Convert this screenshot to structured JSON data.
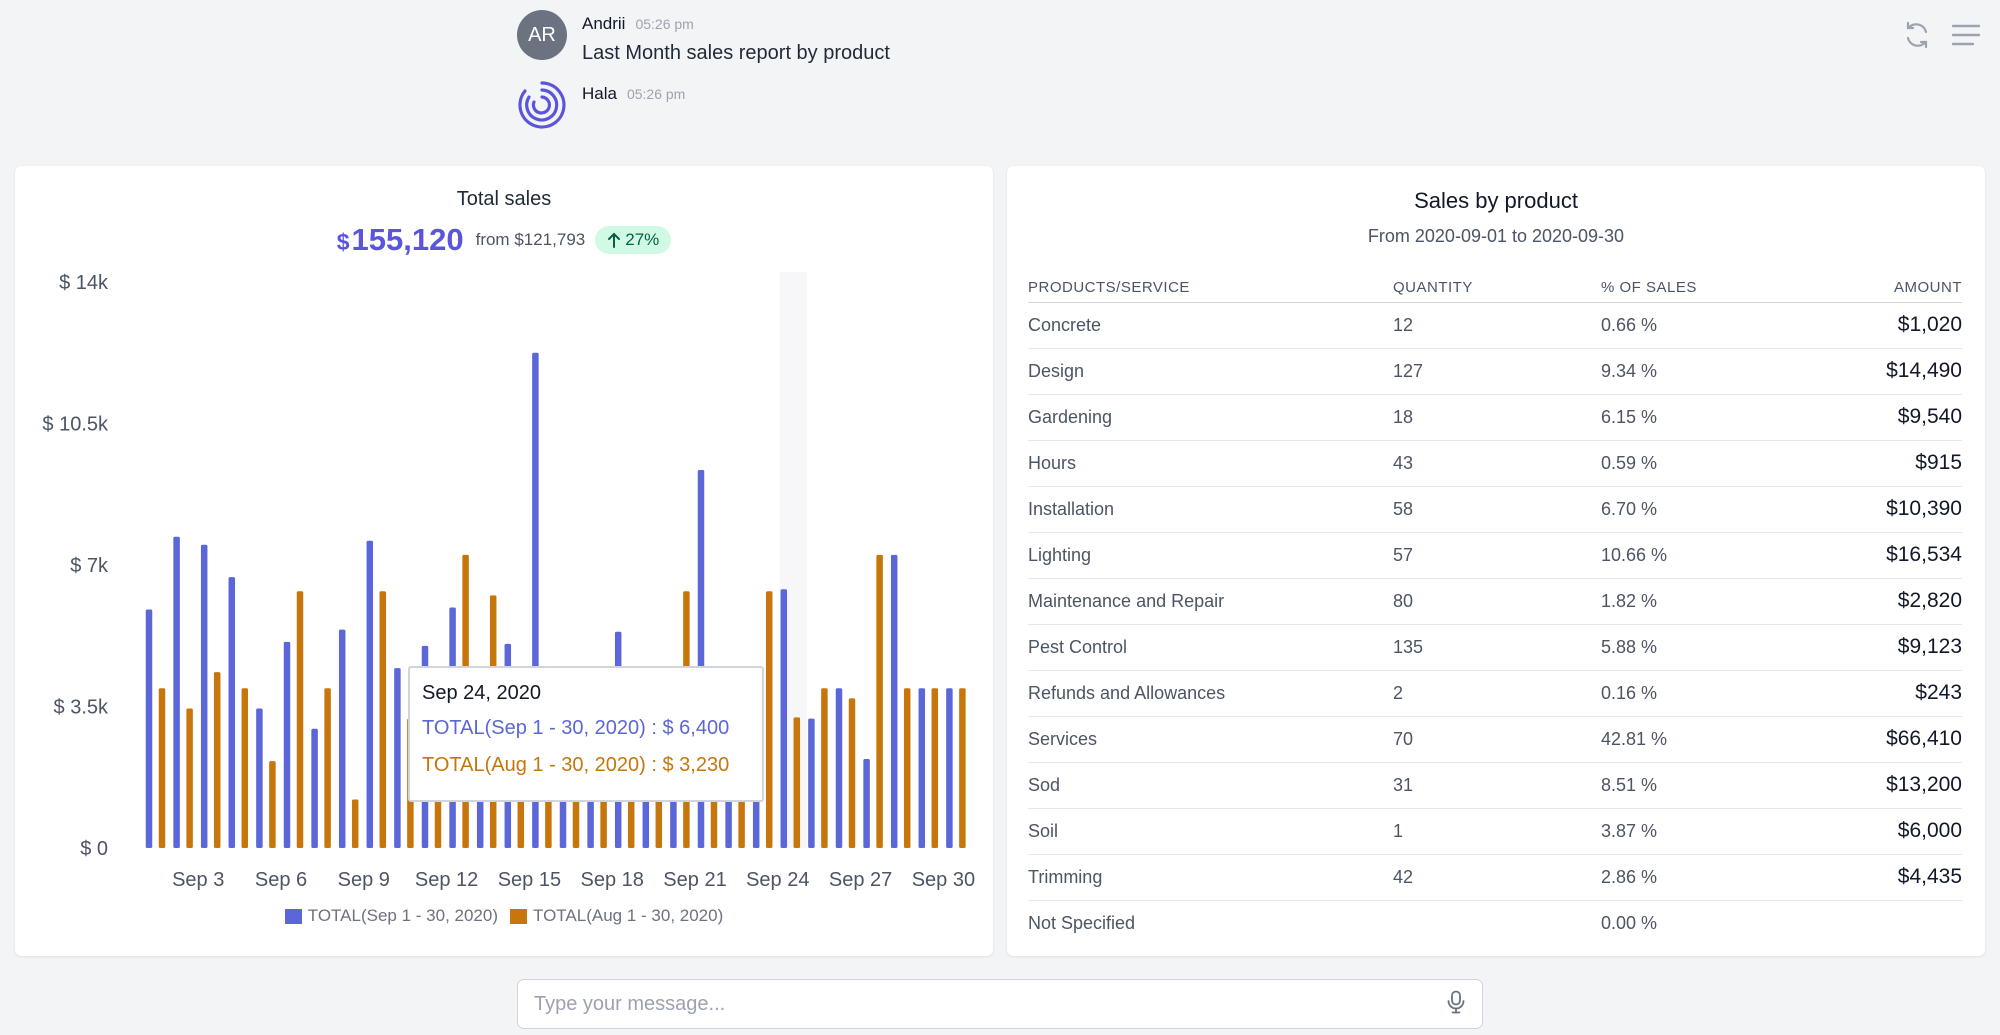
{
  "toolbar": {
    "refresh_icon": "refresh-icon",
    "menu_icon": "menu-icon"
  },
  "chat": {
    "messages": [
      {
        "initials": "AR",
        "name": "Andrii",
        "time": "05:26 pm",
        "text": "Last Month sales report by product"
      },
      {
        "name": "Hala",
        "time": "05:26 pm"
      }
    ]
  },
  "total_sales": {
    "title": "Total sales",
    "currency": "$",
    "amount": "155,120",
    "from_text": "from $121,793",
    "change": "27%",
    "tooltip": {
      "date": "Sep 24, 2020",
      "line_current": "TOTAL(Sep 1 - 30, 2020) : $ 6,400",
      "line_previous": "TOTAL(Aug 1 - 30, 2020) : $ 3,230"
    },
    "legend": [
      "TOTAL(Sep 1 - 30, 2020)",
      "TOTAL(Aug 1 - 30, 2020)"
    ]
  },
  "chart_data": {
    "type": "bar",
    "x": [
      "Sep 1",
      "Sep 2",
      "Sep 3",
      "Sep 4",
      "Sep 5",
      "Sep 6",
      "Sep 7",
      "Sep 8",
      "Sep 9",
      "Sep 10",
      "Sep 11",
      "Sep 12",
      "Sep 13",
      "Sep 14",
      "Sep 15",
      "Sep 16",
      "Sep 17",
      "Sep 18",
      "Sep 19",
      "Sep 20",
      "Sep 21",
      "Sep 22",
      "Sep 23",
      "Sep 24",
      "Sep 25",
      "Sep 26",
      "Sep 27",
      "Sep 28",
      "Sep 29",
      "Sep 30"
    ],
    "xticks": [
      "Sep 3",
      "Sep 6",
      "Sep 9",
      "Sep 12",
      "Sep 15",
      "Sep 18",
      "Sep 21",
      "Sep 24",
      "Sep 27",
      "Sep 30"
    ],
    "yticks": [
      "$ 0",
      "$ 3.5k",
      "$ 7k",
      "$ 10.5k",
      "$ 14k"
    ],
    "ylim": [
      0,
      14000
    ],
    "series": [
      {
        "name": "TOTAL(Sep 1 - 30, 2020)",
        "color": "#5b67d8",
        "values": [
          5900,
          7700,
          7500,
          6700,
          3450,
          5100,
          2950,
          5400,
          7600,
          4450,
          5000,
          5950,
          4050,
          5050,
          12250,
          1950,
          2400,
          5350,
          3100,
          1950,
          9350,
          1750,
          3000,
          6400,
          3200,
          3950,
          2200,
          7250,
          3950,
          3950
        ]
      },
      {
        "name": "TOTAL(Aug 1 - 30, 2020)",
        "color": "#c6760b",
        "values": [
          3950,
          3450,
          4350,
          3950,
          2150,
          6350,
          3950,
          1200,
          6350,
          3200,
          2850,
          7250,
          6250,
          2100,
          1950,
          2100,
          2450,
          1850,
          2100,
          6350,
          2100,
          2500,
          6350,
          3230,
          3950,
          3700,
          7250,
          3950,
          3950,
          3950
        ]
      }
    ]
  },
  "sales_by_product": {
    "title": "Sales by product",
    "subtitle": "From 2020-09-01 to 2020-09-30",
    "columns": [
      "PRODUCTS/SERVICE",
      "QUANTITY",
      "% OF SALES",
      "AMOUNT"
    ],
    "rows": [
      {
        "product": "Concrete",
        "qty": "12",
        "pct": "0.66 %",
        "amount": "$1,020"
      },
      {
        "product": "Design",
        "qty": "127",
        "pct": "9.34 %",
        "amount": "$14,490"
      },
      {
        "product": "Gardening",
        "qty": "18",
        "pct": "6.15 %",
        "amount": "$9,540"
      },
      {
        "product": "Hours",
        "qty": "43",
        "pct": "0.59 %",
        "amount": "$915"
      },
      {
        "product": "Installation",
        "qty": "58",
        "pct": "6.70 %",
        "amount": "$10,390"
      },
      {
        "product": "Lighting",
        "qty": "57",
        "pct": "10.66 %",
        "amount": "$16,534"
      },
      {
        "product": "Maintenance and Repair",
        "qty": "80",
        "pct": "1.82 %",
        "amount": "$2,820"
      },
      {
        "product": "Pest Control",
        "qty": "135",
        "pct": "5.88 %",
        "amount": "$9,123"
      },
      {
        "product": "Refunds and Allowances",
        "qty": "2",
        "pct": "0.16 %",
        "amount": "$243"
      },
      {
        "product": "Services",
        "qty": "70",
        "pct": "42.81 %",
        "amount": "$66,410"
      },
      {
        "product": "Sod",
        "qty": "31",
        "pct": "8.51 %",
        "amount": "$13,200"
      },
      {
        "product": "Soil",
        "qty": "1",
        "pct": "3.87 %",
        "amount": "$6,000"
      },
      {
        "product": "Trimming",
        "qty": "42",
        "pct": "2.86 %",
        "amount": "$4,435"
      },
      {
        "product": "Not Specified",
        "qty": "",
        "pct": "0.00 %",
        "amount": ""
      }
    ]
  },
  "composer": {
    "placeholder": "Type your message...",
    "mic_icon": "microphone-icon"
  }
}
